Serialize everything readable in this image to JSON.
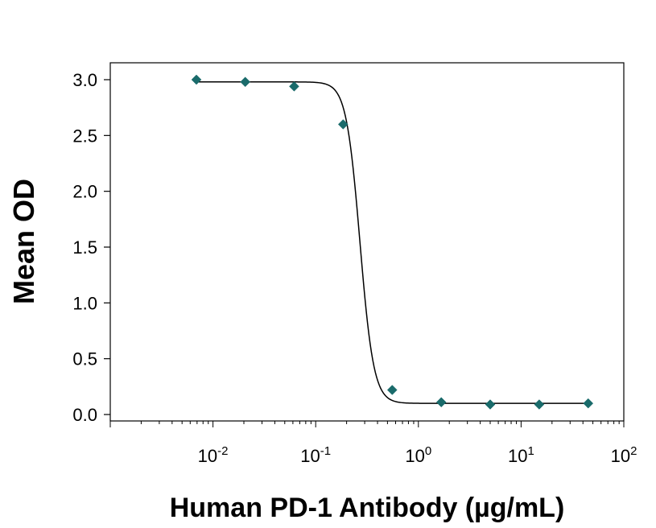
{
  "chart_data": {
    "type": "scatter",
    "title": "",
    "xlabel": "Human PD-1 Antibody (µg/mL)",
    "ylabel": "Mean OD",
    "x_scale": "log",
    "xlim": [
      0.001,
      100
    ],
    "ylim": [
      0.0,
      3.0
    ],
    "x_tick_labels": [
      {
        "base": "10",
        "exp": "-2",
        "value": 0.01
      },
      {
        "base": "10",
        "exp": "-1",
        "value": 0.1
      },
      {
        "base": "10",
        "exp": "0",
        "value": 1
      },
      {
        "base": "10",
        "exp": "1",
        "value": 10
      },
      {
        "base": "10",
        "exp": "2",
        "value": 100
      }
    ],
    "y_ticks": [
      0.0,
      0.5,
      1.0,
      1.5,
      2.0,
      2.5,
      3.0
    ],
    "y_tick_labels": [
      "0.0",
      "0.5",
      "1.0",
      "1.5",
      "2.0",
      "2.5",
      "3.0"
    ],
    "grid": false,
    "legend": "none",
    "series": [
      {
        "marker": "diamond",
        "color": "#1a6b6b",
        "x": [
          0.0069,
          0.0206,
          0.0617,
          0.185,
          0.556,
          1.67,
          5.0,
          15.0,
          45.0
        ],
        "y": [
          3.0,
          2.98,
          2.94,
          2.6,
          0.22,
          0.11,
          0.09,
          0.09,
          0.1
        ]
      }
    ],
    "fit_curve": {
      "type": "4PL",
      "color": "#000000",
      "top": 2.98,
      "bottom": 0.1,
      "ec50": 0.27,
      "hill": 6.5
    }
  }
}
